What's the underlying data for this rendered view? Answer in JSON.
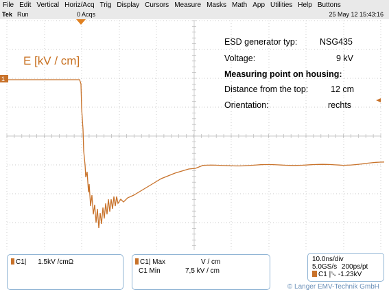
{
  "menu": [
    "File",
    "Edit",
    "Vertical",
    "Horiz/Acq",
    "Trig",
    "Display",
    "Cursors",
    "Measure",
    "Masks",
    "Math",
    "App",
    "Utilities",
    "Help",
    "Buttons"
  ],
  "status": {
    "brand": "Tek",
    "mode": "Run",
    "acqs": "0 Acqs",
    "datetime": "25 May 12 15:43:16"
  },
  "plot": {
    "ylabel": "E [kV / cm]",
    "trace_color": "#c8722a",
    "grid_color": "#b8b8b8",
    "channel_marker": "1",
    "info": [
      {
        "label": "ESD generator typ:",
        "value": "NSG435",
        "bold": false
      },
      {
        "label": "Voltage:",
        "value": "9 kV",
        "bold": false
      },
      {
        "label": "Measuring point on housing:",
        "value": "",
        "bold": true
      },
      {
        "label": "Distance from the top:",
        "value": "12 cm",
        "bold": false
      },
      {
        "label": "Orientation:",
        "value": "rechts",
        "bold": false
      }
    ]
  },
  "bottom": {
    "ch1": {
      "label": "C1",
      "scale": "1.5kV /cm",
      "unit": "Ω"
    },
    "meas": {
      "r1_label": "C1| Max",
      "r1_value": "V  / cm",
      "r2_label": "C1 Min",
      "r2_value": "7,5   kV / cm"
    },
    "timebase": {
      "div": "10.0ns/div",
      "rate": "5.0GS/s",
      "res": "200ps/pt",
      "trig_ch": "C1",
      "trig_level": "-1.23kV"
    },
    "copyright": "© Langer EMV-Technik GmbH"
  }
}
